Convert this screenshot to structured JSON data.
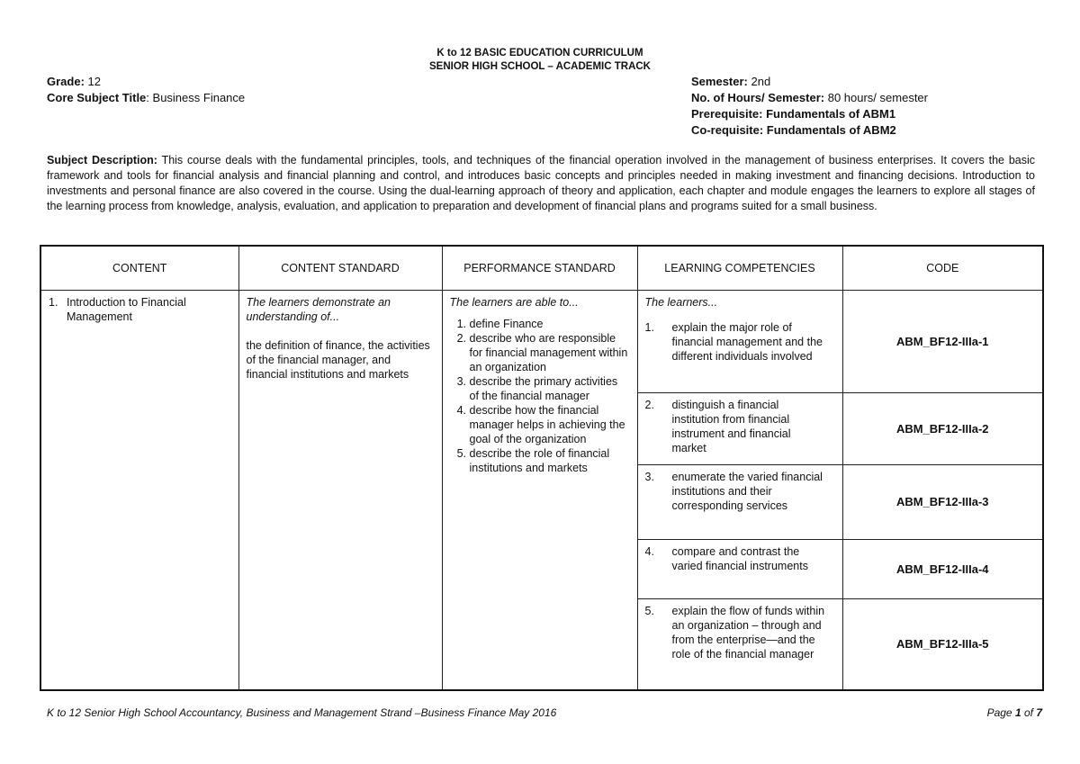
{
  "header": {
    "line1": "K to 12 BASIC EDUCATION CURRICULUM",
    "line2": "SENIOR HIGH SCHOOL – ACADEMIC TRACK"
  },
  "meta": {
    "grade_label": "Grade:",
    "grade": "12",
    "subject_label": "Core Subject Title",
    "subject": ": Business Finance",
    "semester_label": "Semester:",
    "semester": "2nd",
    "hours_label": "No. of Hours/ Semester:",
    "hours": "80 hours/ semester",
    "prerequisite": "Prerequisite: Fundamentals of ABM1",
    "corequisite": "Co-requisite: Fundamentals of ABM2"
  },
  "description": {
    "label": "Subject Description:",
    "text": " This course deals with the fundamental principles, tools, and techniques of the financial operation involved in the management of business enterprises. It covers the basic framework and tools for financial analysis and financial planning and control, and introduces basic concepts and principles needed in making investment and financing decisions.   Introduction to investments and personal finance are also covered in the course. Using the dual-learning approach of theory and application, each chapter and module engages the learners to explore all stages of the learning process from knowledge, analysis, evaluation, and application to preparation and development of financial plans and programs suited for a small business."
  },
  "table": {
    "headers": [
      "CONTENT",
      "CONTENT STANDARD",
      "PERFORMANCE STANDARD",
      "LEARNING COMPETENCIES",
      "CODE"
    ],
    "content": {
      "num": "1.",
      "text": "Introduction to Financial Management"
    },
    "content_standard": {
      "intro": "The learners demonstrate an understanding of...",
      "text": "the definition of finance, the activities of the financial manager, and financial institutions and markets"
    },
    "performance_standard": {
      "intro": "The learners are able to...",
      "items": [
        "define Finance",
        "describe who are responsible for financial management within an organization",
        "describe  the primary activities of the financial manager",
        "describe how the financial manager helps in achieving the goal of the organization",
        "describe the role of financial institutions and markets"
      ]
    },
    "competencies_intro": "The learners...",
    "competencies": [
      {
        "num": "1.",
        "text": "explain the major role of financial management and the different individuals involved",
        "code": "ABM_BF12-IIIa-1"
      },
      {
        "num": "2.",
        "text": "distinguish a financial institution from financial instrument and financial market",
        "code": "ABM_BF12-IIIa-2"
      },
      {
        "num": "3.",
        "text": "enumerate the varied financial institutions and their corresponding services",
        "code": "ABM_BF12-IIIa-3"
      },
      {
        "num": "4.",
        "text": "compare and contrast the varied financial instruments",
        "code": "ABM_BF12-IIIa-4"
      },
      {
        "num": "5.",
        "text": "explain the flow of funds within an organization – through and from the enterprise—and the role of the financial manager",
        "code": "ABM_BF12-IIIa-5"
      }
    ]
  },
  "footer": {
    "text": "K to 12 Senior High School Accountancy, Business and Management Strand –Business Finance May 2016",
    "page_prefix": "Page ",
    "page": "1",
    "page_of": " of ",
    "total": "7"
  }
}
